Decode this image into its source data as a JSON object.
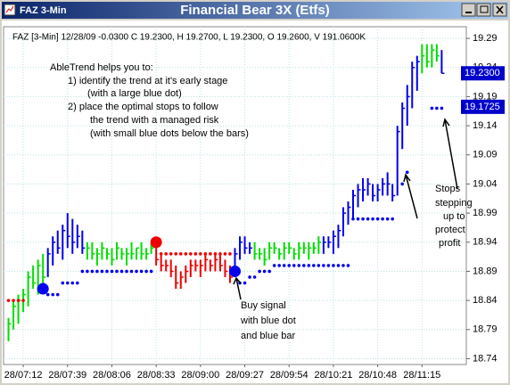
{
  "window": {
    "title": "FAZ 3-Min"
  },
  "chart_data": {
    "type": "ohlc",
    "title": "Financial Bear 3X (Etfs)",
    "info": "FAZ [3-Min] 12/28/09 -0.0300 C 19.2300, H 19.2700, L 19.2300, O 19.2600, V 191.0600K",
    "xlim": [
      -1,
      93
    ],
    "ylim": [
      18.73,
      19.31
    ],
    "yticks": [
      18.74,
      18.79,
      18.84,
      18.89,
      18.94,
      18.99,
      19.04,
      19.09,
      19.14,
      19.19,
      19.24,
      19.29
    ],
    "xticks": [
      {
        "value": 3,
        "label": "28/07:12"
      },
      {
        "value": 12,
        "label": "28/07:39"
      },
      {
        "value": 21,
        "label": "28/08:06"
      },
      {
        "value": 30,
        "label": "28/08:33"
      },
      {
        "value": 39,
        "label": "28/09:00"
      },
      {
        "value": 48,
        "label": "28/09:27"
      },
      {
        "value": 57,
        "label": "28/09:54"
      },
      {
        "value": 66,
        "label": "28/10:21"
      },
      {
        "value": 75,
        "label": "28/10:48"
      },
      {
        "value": 84,
        "label": "28/11:15"
      }
    ],
    "grid": true,
    "low": [
      18.77,
      18.79,
      18.8,
      18.82,
      18.83,
      18.86,
      18.85,
      18.86,
      18.88,
      18.9,
      18.92,
      18.91,
      18.93,
      18.92,
      18.93,
      18.92,
      18.91,
      18.91,
      18.9,
      18.91,
      18.91,
      18.9,
      18.91,
      18.91,
      18.9,
      18.91,
      18.91,
      18.91,
      18.91,
      18.92,
      18.9,
      18.89,
      18.89,
      18.88,
      18.86,
      18.86,
      18.87,
      18.88,
      18.89,
      18.88,
      18.89,
      18.89,
      18.89,
      18.89,
      18.88,
      18.87,
      18.88,
      18.91,
      18.92,
      18.92,
      18.91,
      18.91,
      18.9,
      18.91,
      18.92,
      18.91,
      18.91,
      18.92,
      18.91,
      18.91,
      18.92,
      18.91,
      18.92,
      18.92,
      18.92,
      18.93,
      18.92,
      18.93,
      18.95,
      18.97,
      18.98,
      19.0,
      19.01,
      19.02,
      19.01,
      19.01,
      19.02,
      19.02,
      19.01,
      19.02,
      19.1,
      19.14,
      19.17,
      19.2,
      19.23,
      19.24,
      19.24,
      19.25,
      19.23
    ],
    "high": [
      18.81,
      18.84,
      18.85,
      18.86,
      18.89,
      18.9,
      18.91,
      18.92,
      18.93,
      18.95,
      18.96,
      18.97,
      18.99,
      18.98,
      18.97,
      18.96,
      18.94,
      18.94,
      18.93,
      18.94,
      18.93,
      18.93,
      18.94,
      18.93,
      18.93,
      18.94,
      18.93,
      18.94,
      18.93,
      18.94,
      18.94,
      18.92,
      18.91,
      18.91,
      18.9,
      18.89,
      18.9,
      18.91,
      18.91,
      18.91,
      18.92,
      18.91,
      18.92,
      18.92,
      18.91,
      18.9,
      18.93,
      18.95,
      18.95,
      18.94,
      18.94,
      18.93,
      18.93,
      18.94,
      18.94,
      18.93,
      18.94,
      18.94,
      18.93,
      18.94,
      18.94,
      18.94,
      18.94,
      18.95,
      18.95,
      18.95,
      18.96,
      18.97,
      19.0,
      19.01,
      19.03,
      19.04,
      19.05,
      19.05,
      19.04,
      19.04,
      19.05,
      19.06,
      19.04,
      19.14,
      19.18,
      19.21,
      19.25,
      19.26,
      19.28,
      19.28,
      19.28,
      19.28,
      19.27
    ],
    "close": [
      18.8,
      18.83,
      18.84,
      18.85,
      18.88,
      18.87,
      18.9,
      18.88,
      18.92,
      18.94,
      18.93,
      18.96,
      18.95,
      18.94,
      18.95,
      18.93,
      18.93,
      18.92,
      18.92,
      18.93,
      18.92,
      18.91,
      18.93,
      18.92,
      18.92,
      18.92,
      18.93,
      18.92,
      18.92,
      18.93,
      18.91,
      18.9,
      18.9,
      18.89,
      18.87,
      18.88,
      18.89,
      18.9,
      18.9,
      18.9,
      18.91,
      18.9,
      18.91,
      18.9,
      18.89,
      18.88,
      18.92,
      18.94,
      18.93,
      18.93,
      18.92,
      18.92,
      18.91,
      18.93,
      18.93,
      18.92,
      18.93,
      18.93,
      18.92,
      18.93,
      18.93,
      18.93,
      18.93,
      18.94,
      18.94,
      18.94,
      18.95,
      18.96,
      18.99,
      19.0,
      19.02,
      19.03,
      19.03,
      19.04,
      19.02,
      19.03,
      19.04,
      19.04,
      19.02,
      19.13,
      19.17,
      19.19,
      19.24,
      19.25,
      19.26,
      19.25,
      19.27,
      19.26,
      19.23
    ],
    "bar_colors": [
      "#00dd00",
      "#00dd00",
      "#00dd00",
      "#00dd00",
      "#00dd00",
      "#00dd00",
      "#00dd00",
      "#00dd00",
      "#0000ee",
      "#0000ee",
      "#0000ee",
      "#0000ee",
      "#0000ee",
      "#0000ee",
      "#0000ee",
      "#0000ee",
      "#00dd00",
      "#00dd00",
      "#00dd00",
      "#00dd00",
      "#00dd00",
      "#00dd00",
      "#00dd00",
      "#00dd00",
      "#00dd00",
      "#00dd00",
      "#00dd00",
      "#00dd00",
      "#00dd00",
      "#00dd00",
      "#ee0000",
      "#ee0000",
      "#ee0000",
      "#ee0000",
      "#ee0000",
      "#ee0000",
      "#ee0000",
      "#ee0000",
      "#ee0000",
      "#ee0000",
      "#ee0000",
      "#ee0000",
      "#ee0000",
      "#ee0000",
      "#ee0000",
      "#ee0000",
      "#0000ee",
      "#0000ee",
      "#0000ee",
      "#0000ee",
      "#00dd00",
      "#00dd00",
      "#00dd00",
      "#00dd00",
      "#00dd00",
      "#00dd00",
      "#00dd00",
      "#00dd00",
      "#00dd00",
      "#00dd00",
      "#00dd00",
      "#00dd00",
      "#00dd00",
      "#00dd00",
      "#0000ee",
      "#0000ee",
      "#0000ee",
      "#0000ee",
      "#0000ee",
      "#0000ee",
      "#0000ee",
      "#0000ee",
      "#0000ee",
      "#0000ee",
      "#0000ee",
      "#0000ee",
      "#0000ee",
      "#0000ee",
      "#0000ee",
      "#0000ee",
      "#0000ee",
      "#0000ee",
      "#0000ee",
      "#0000ee",
      "#00dd00",
      "#00dd00",
      "#00dd00",
      "#00dd00",
      "#0000ee"
    ],
    "stops": [
      18.84,
      18.84,
      18.84,
      18.84,
      null,
      null,
      null,
      null,
      18.85,
      18.85,
      18.85,
      18.87,
      18.87,
      18.87,
      18.87,
      18.89,
      18.89,
      18.89,
      18.89,
      18.89,
      18.89,
      18.89,
      18.89,
      18.89,
      18.89,
      18.89,
      18.89,
      18.89,
      18.89,
      18.89,
      null,
      18.92,
      18.92,
      18.92,
      18.92,
      18.92,
      18.92,
      18.92,
      18.92,
      18.92,
      18.92,
      18.92,
      18.92,
      18.92,
      18.92,
      18.92,
      null,
      18.87,
      18.87,
      18.88,
      18.88,
      18.89,
      18.89,
      18.89,
      18.9,
      18.9,
      18.9,
      18.9,
      18.9,
      18.9,
      18.9,
      18.9,
      18.9,
      18.9,
      18.9,
      18.9,
      18.9,
      18.9,
      18.9,
      18.9,
      18.98,
      18.98,
      18.98,
      18.98,
      18.98,
      18.98,
      18.98,
      18.98,
      18.98,
      null,
      19.04,
      19.06,
      null,
      null,
      null,
      null,
      19.17,
      19.17,
      19.17
    ],
    "stop_colors": [
      "#ee0000",
      "#ee0000",
      "#ee0000",
      "#ee0000",
      null,
      null,
      null,
      null,
      "#0000ee",
      "#0000ee",
      "#0000ee",
      "#0000ee",
      "#0000ee",
      "#0000ee",
      "#0000ee",
      "#0000ee",
      "#0000ee",
      "#0000ee",
      "#0000ee",
      "#0000ee",
      "#0000ee",
      "#0000ee",
      "#0000ee",
      "#0000ee",
      "#0000ee",
      "#0000ee",
      "#0000ee",
      "#0000ee",
      "#0000ee",
      "#0000ee",
      null,
      "#ee0000",
      "#ee0000",
      "#ee0000",
      "#ee0000",
      "#ee0000",
      "#ee0000",
      "#ee0000",
      "#ee0000",
      "#ee0000",
      "#ee0000",
      "#ee0000",
      "#ee0000",
      "#ee0000",
      "#ee0000",
      "#ee0000",
      null,
      "#0000ee",
      "#0000ee",
      "#0000ee",
      "#0000ee",
      "#0000ee",
      "#0000ee",
      "#0000ee",
      "#0000ee",
      "#0000ee",
      "#0000ee",
      "#0000ee",
      "#0000ee",
      "#0000ee",
      "#0000ee",
      "#0000ee",
      "#0000ee",
      "#0000ee",
      "#0000ee",
      "#0000ee",
      "#0000ee",
      "#0000ee",
      "#0000ee",
      "#0000ee",
      "#0000ee",
      "#0000ee",
      "#0000ee",
      "#0000ee",
      "#0000ee",
      "#0000ee",
      "#0000ee",
      "#0000ee",
      "#0000ee",
      null,
      "#0000ee",
      "#0000ee",
      null,
      null,
      null,
      null,
      "#0000ee",
      "#0000ee",
      "#0000ee"
    ],
    "signals": [
      {
        "index": 7,
        "value": 18.86,
        "color": "#0000ee"
      },
      {
        "index": 30,
        "value": 18.94,
        "color": "#ee0000"
      },
      {
        "index": 46,
        "value": 18.89,
        "color": "#0000ee"
      }
    ],
    "price_markers": [
      {
        "value": 19.23,
        "label": "19.2300"
      },
      {
        "value": 19.1725,
        "label": "19.1725"
      }
    ],
    "annotations": [
      {
        "lines": [
          "AbleTrend helps you to:",
          "1)    identify the trend at it's early stage",
          "(with a large blue dot)",
          "2)   place the optimal stops to follow",
          "the trend with a managed risk",
          "(with small blue dots below the bars)"
        ]
      },
      {
        "lines": [
          "Buy signal",
          "with blue dot",
          "and blue bar"
        ]
      },
      {
        "lines": [
          "Stops",
          "stepping",
          "up to",
          "protect",
          "profit"
        ]
      }
    ]
  }
}
